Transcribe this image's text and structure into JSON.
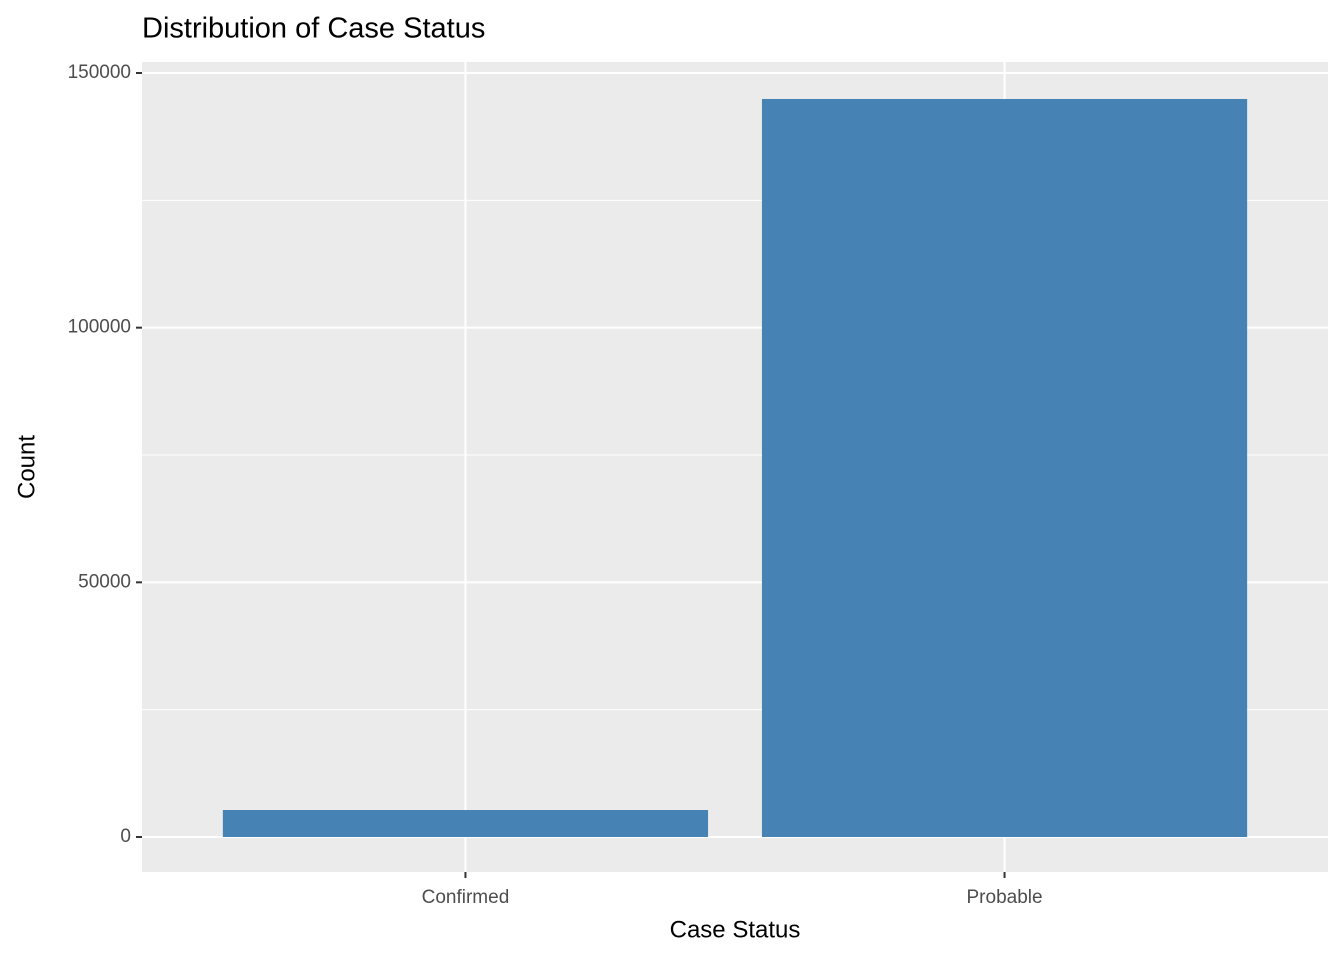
{
  "chart_data": {
    "type": "bar",
    "title": "Distribution of Case Status",
    "x_label": "Case Status",
    "y_label": "Count",
    "categories": [
      "Confirmed",
      "Probable"
    ],
    "values": [
      5300,
      144900
    ],
    "color": "#4682b4",
    "ylim": [
      -6872,
      152160
    ],
    "yticks": [
      0,
      50000,
      100000,
      150000
    ],
    "minor_yticks": [
      25000,
      75000,
      125000
    ],
    "grid": true
  }
}
